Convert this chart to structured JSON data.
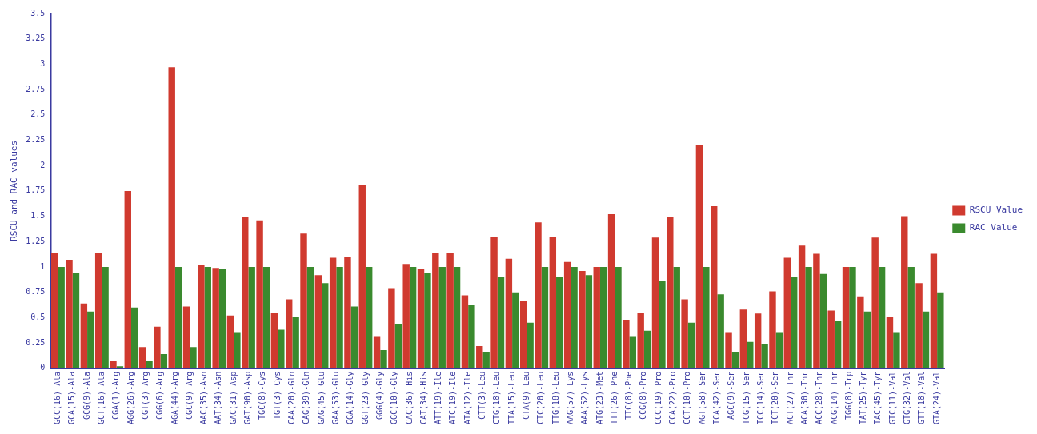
{
  "chart_data": {
    "type": "bar",
    "ylabel": "RSCU and RAC values",
    "legend": "right",
    "grid": false,
    "categories": [
      "GCC(16)-Ala",
      "GCA(15)-Ala",
      "GCG(9)-Ala",
      "GCT(16)-Ala",
      "CGA(1)-Arg",
      "AGG(26)-Arg",
      "CGT(3)-Arg",
      "CGG(6)-Arg",
      "AGA(44)-Arg",
      "CGC(9)-Arg",
      "AAC(35)-Asn",
      "AAT(34)-Asn",
      "GAC(31)-Asp",
      "GAT(90)-Asp",
      "TGC(8)-Cys",
      "TGT(3)-Cys",
      "CAA(20)-Gln",
      "CAG(39)-Gln",
      "GAG(45)-Glu",
      "GAA(53)-Glu",
      "GGA(14)-Gly",
      "GGT(23)-Gly",
      "GGG(4)-Gly",
      "GGC(10)-Gly",
      "CAC(36)-His",
      "CAT(34)-His",
      "ATT(19)-Ile",
      "ATC(19)-Ile",
      "ATA(12)-Ile",
      "CTT(3)-Leu",
      "CTG(18)-Leu",
      "TTA(15)-Leu",
      "CTA(9)-Leu",
      "CTC(20)-Leu",
      "TTG(18)-Leu",
      "AAG(57)-Lys",
      "AAA(52)-Lys",
      "ATG(23)-Met",
      "TTT(26)-Phe",
      "TTC(8)-Phe",
      "CCG(8)-Pro",
      "CCC(19)-Pro",
      "CCA(22)-Pro",
      "CCT(10)-Pro",
      "AGT(58)-Ser",
      "TCA(42)-Ser",
      "AGC(9)-Ser",
      "TCG(15)-Ser",
      "TCC(14)-Ser",
      "TCT(20)-Ser",
      "ACT(27)-Thr",
      "ACA(30)-Thr",
      "ACC(28)-Thr",
      "ACG(14)-Thr",
      "TGG(8)-Trp",
      "TAT(25)-Tyr",
      "TAC(45)-Tyr",
      "GTC(11)-Val",
      "GTG(32)-Val",
      "GTT(18)-Val",
      "GTA(24)-Val"
    ],
    "series": [
      {
        "name": "RSCU Value",
        "color": "#d03a2f",
        "values": [
          1.14,
          1.07,
          0.64,
          1.14,
          0.07,
          1.75,
          0.21,
          0.41,
          2.97,
          0.61,
          1.02,
          0.99,
          0.52,
          1.49,
          1.46,
          0.55,
          0.68,
          1.33,
          0.92,
          1.09,
          1.1,
          1.81,
          0.31,
          0.79,
          1.03,
          0.98,
          1.14,
          1.14,
          0.72,
          0.22,
          1.3,
          1.08,
          0.66,
          1.44,
          1.3,
          1.05,
          0.96,
          1.0,
          1.52,
          0.48,
          0.55,
          1.29,
          1.49,
          0.68,
          2.2,
          1.6,
          0.35,
          0.58,
          0.54,
          0.76,
          1.09,
          1.21,
          1.13,
          0.57,
          1.0,
          0.71,
          1.29,
          0.51,
          1.5,
          0.84,
          1.13
        ]
      },
      {
        "name": "RAC Value",
        "color": "#3a8a2e",
        "values": [
          1.0,
          0.94,
          0.56,
          1.0,
          0.02,
          0.6,
          0.07,
          0.14,
          1.0,
          0.21,
          1.0,
          0.98,
          0.35,
          1.0,
          1.0,
          0.38,
          0.51,
          1.0,
          0.84,
          1.0,
          0.61,
          1.0,
          0.18,
          0.44,
          1.0,
          0.94,
          1.0,
          1.0,
          0.63,
          0.16,
          0.9,
          0.75,
          0.45,
          1.0,
          0.9,
          1.0,
          0.92,
          1.0,
          1.0,
          0.31,
          0.37,
          0.86,
          1.0,
          0.45,
          1.0,
          0.73,
          0.16,
          0.26,
          0.24,
          0.35,
          0.9,
          1.0,
          0.93,
          0.47,
          1.0,
          0.56,
          1.0,
          0.35,
          1.0,
          0.56,
          0.75
        ]
      }
    ],
    "ylim": [
      0,
      3.5
    ],
    "yticks": [
      0,
      0.25,
      0.5,
      0.75,
      1,
      1.25,
      1.5,
      1.75,
      2,
      2.25,
      2.5,
      2.75,
      3,
      3.25,
      3.5
    ]
  }
}
